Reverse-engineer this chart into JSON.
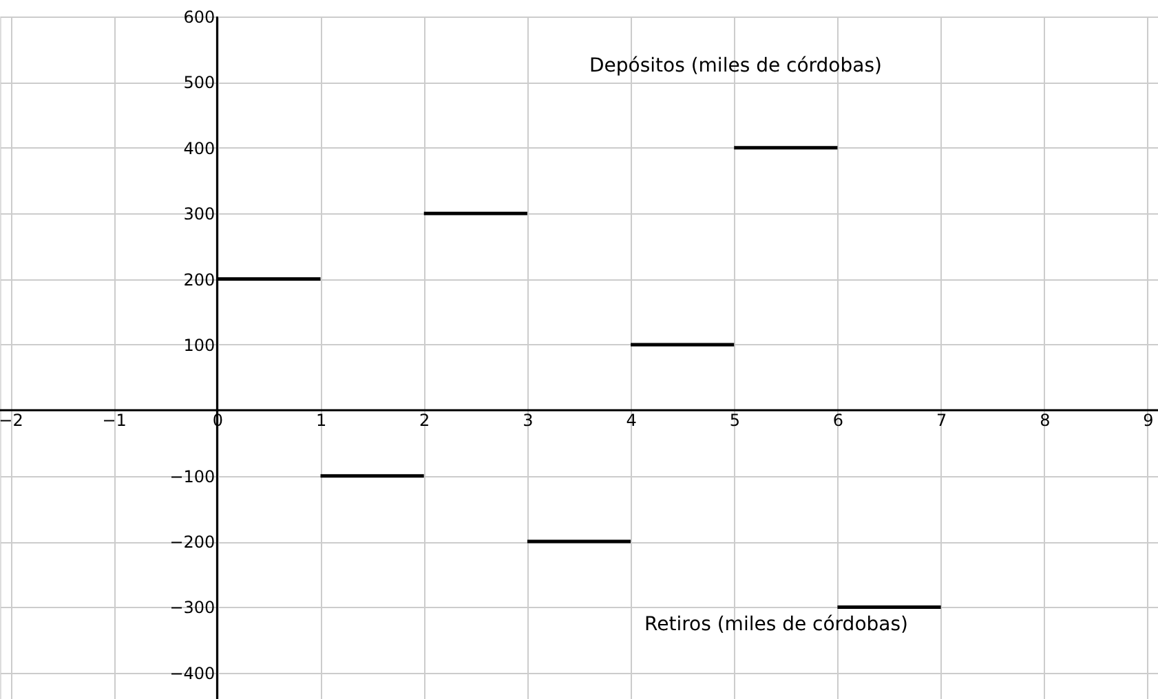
{
  "chart_data": {
    "type": "line",
    "xlim": [
      -2.1,
      9.1
    ],
    "ylim": [
      -440,
      600
    ],
    "xticks": [
      -2,
      -1,
      0,
      1,
      2,
      3,
      4,
      5,
      6,
      7,
      8,
      9
    ],
    "yticks": [
      -400,
      -300,
      -200,
      -100,
      100,
      200,
      300,
      400,
      500,
      600
    ],
    "grid": true,
    "marker": "none",
    "line_style": "solid",
    "annotations": [
      "Depósitos (miles de córdobas)",
      "Retiros (miles de córdobas)"
    ],
    "series": [
      {
        "type": "line",
        "x": [
          0,
          1
        ],
        "values": [
          200,
          200
        ],
        "color": "#000000"
      },
      {
        "type": "line",
        "x": [
          1,
          2
        ],
        "values": [
          -100,
          -100
        ],
        "color": "#000000"
      },
      {
        "type": "line",
        "x": [
          2,
          3
        ],
        "values": [
          300,
          300
        ],
        "color": "#000000"
      },
      {
        "type": "line",
        "x": [
          3,
          4
        ],
        "values": [
          -200,
          -200
        ],
        "color": "#000000"
      },
      {
        "type": "line",
        "x": [
          4,
          5
        ],
        "values": [
          100,
          100
        ],
        "color": "#000000"
      },
      {
        "type": "line",
        "x": [
          5,
          6
        ],
        "values": [
          400,
          400
        ],
        "color": "#000000"
      },
      {
        "type": "line",
        "x": [
          6,
          7
        ],
        "values": [
          -300,
          -300
        ],
        "color": "#000000"
      }
    ]
  }
}
